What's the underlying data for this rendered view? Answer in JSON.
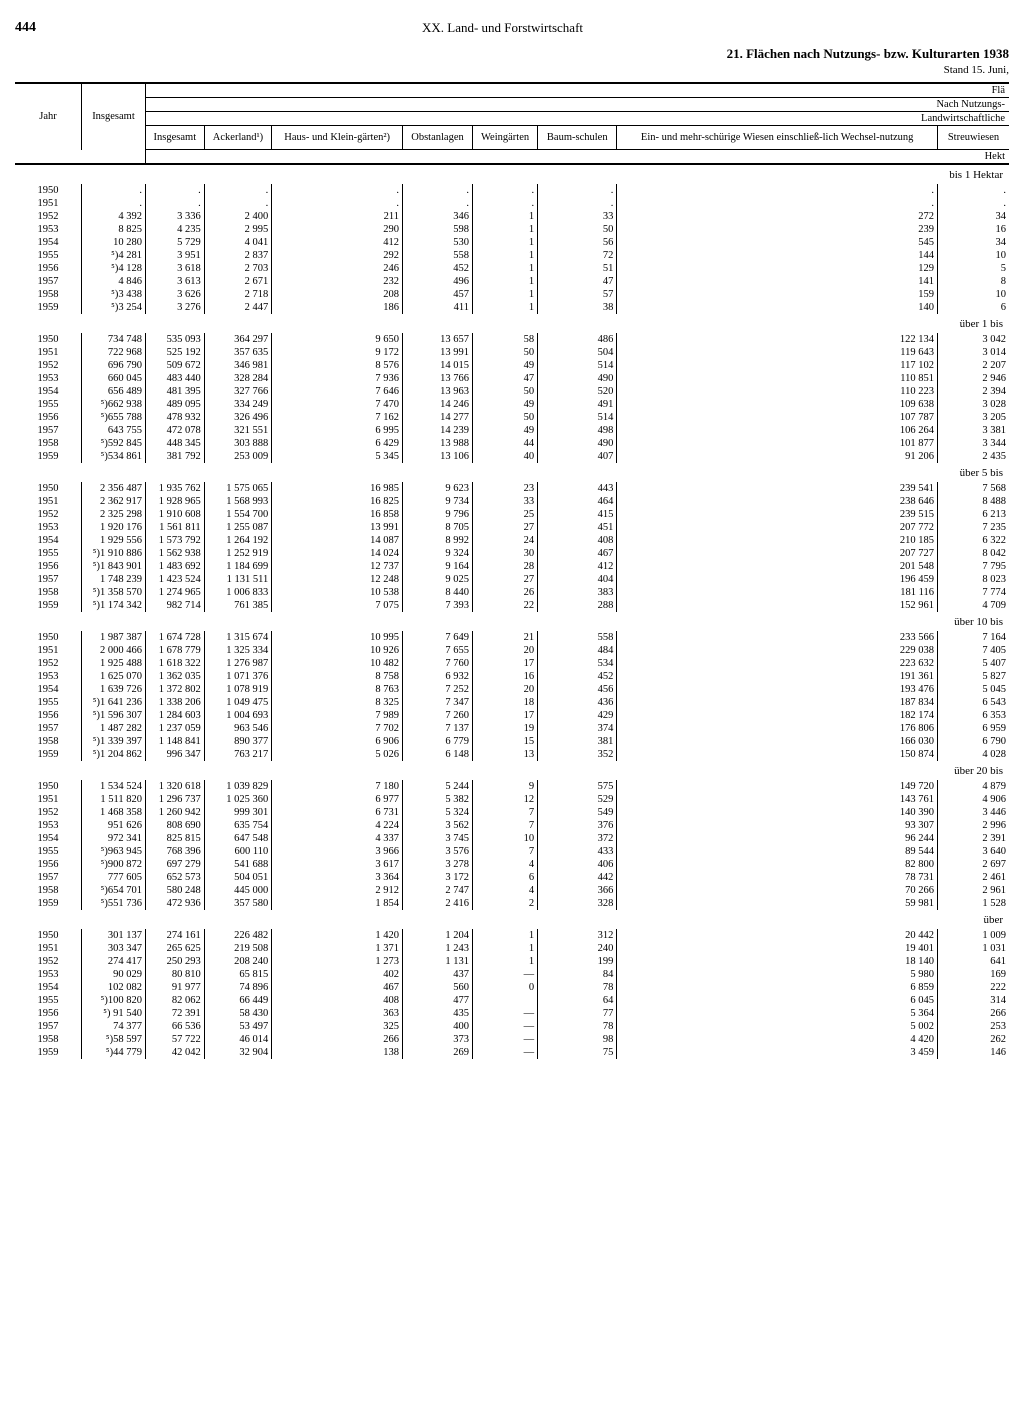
{
  "page_number": "444",
  "section": "XX. Land- und Forstwirtschaft",
  "title": "21. Flächen nach Nutzungs- bzw. Kulturarten 1938",
  "subtitle": "Stand 15. Juni,",
  "header": {
    "fla": "Flä",
    "nach_nutzungs": "Nach Nutzungs-",
    "landwirt": "Landwirtschaftliche",
    "jahr": "Jahr",
    "insgesamt": "Insgesamt",
    "insgesamt2": "Insgesamt",
    "ackerland": "Ackerland¹)",
    "haus": "Haus- und Klein-gärten²)",
    "obst": "Obstanlagen",
    "wein": "Weingärten",
    "baum": "Baum-schulen",
    "wiesen": "Ein- und mehr-schürige Wiesen einschließ-lich Wechsel-nutzung",
    "streu": "Streuwiesen",
    "hekt": "Hekt"
  },
  "groups": [
    {
      "label": "bis 1 Hektar",
      "rows": [
        [
          "1950",
          ".",
          ".",
          ".",
          ".",
          ".",
          ".",
          ".",
          ".",
          "."
        ],
        [
          "1951",
          ".",
          ".",
          ".",
          ".",
          ".",
          ".",
          ".",
          ".",
          "."
        ],
        [
          "1952",
          "4 392",
          "3 336",
          "2 400",
          "211",
          "346",
          "1",
          "33",
          "272",
          "34"
        ],
        [
          "1953",
          "8 825",
          "4 235",
          "2 995",
          "290",
          "598",
          "1",
          "50",
          "239",
          "16"
        ],
        [
          "1954",
          "10 280",
          "5 729",
          "4 041",
          "412",
          "530",
          "1",
          "56",
          "545",
          "34"
        ],
        [
          "1955",
          "⁵)4 281",
          "3 951",
          "2 837",
          "292",
          "558",
          "1",
          "72",
          "144",
          "10"
        ],
        [
          "1956",
          "⁵)4 128",
          "3 618",
          "2 703",
          "246",
          "452",
          "1",
          "51",
          "129",
          "5"
        ],
        [
          "1957",
          "4 846",
          "3 613",
          "2 671",
          "232",
          "496",
          "1",
          "47",
          "141",
          "8"
        ],
        [
          "1958",
          "⁵)3 438",
          "3 626",
          "2 718",
          "208",
          "457",
          "1",
          "57",
          "159",
          "10"
        ],
        [
          "1959",
          "⁵)3 254",
          "3 276",
          "2 447",
          "186",
          "411",
          "1",
          "38",
          "140",
          "6"
        ]
      ]
    },
    {
      "label": "über 1 bis",
      "rows": [
        [
          "1950",
          "734 748",
          "535 093",
          "364 297",
          "9 650",
          "13 657",
          "58",
          "486",
          "122 134",
          "3 042"
        ],
        [
          "1951",
          "722 968",
          "525 192",
          "357 635",
          "9 172",
          "13 991",
          "50",
          "504",
          "119 643",
          "3 014"
        ],
        [
          "1952",
          "696 790",
          "509 672",
          "346 981",
          "8 576",
          "14 015",
          "49",
          "514",
          "117 102",
          "2 207"
        ],
        [
          "1953",
          "660 045",
          "483 440",
          "328 284",
          "7 936",
          "13 766",
          "47",
          "490",
          "110 851",
          "2 946"
        ],
        [
          "1954",
          "656 489",
          "481 395",
          "327 766",
          "7 646",
          "13 963",
          "50",
          "520",
          "110 223",
          "2 394"
        ],
        [
          "1955",
          "⁵)662 938",
          "489 095",
          "334 249",
          "7 470",
          "14 246",
          "49",
          "491",
          "109 638",
          "3 028"
        ],
        [
          "1956",
          "⁵)655 788",
          "478 932",
          "326 496",
          "7 162",
          "14 277",
          "50",
          "514",
          "107 787",
          "3 205"
        ],
        [
          "1957",
          "643 755",
          "472 078",
          "321 551",
          "6 995",
          "14 239",
          "49",
          "498",
          "106 264",
          "3 381"
        ],
        [
          "1958",
          "⁵)592 845",
          "448 345",
          "303 888",
          "6 429",
          "13 988",
          "44",
          "490",
          "101 877",
          "3 344"
        ],
        [
          "1959",
          "⁵)534 861",
          "381 792",
          "253 009",
          "5 345",
          "13 106",
          "40",
          "407",
          "91 206",
          "2 435"
        ]
      ]
    },
    {
      "label": "über 5 bis",
      "rows": [
        [
          "1950",
          "2 356 487",
          "1 935 762",
          "1 575 065",
          "16 985",
          "9 623",
          "23",
          "443",
          "239 541",
          "7 568"
        ],
        [
          "1951",
          "2 362 917",
          "1 928 965",
          "1 568 993",
          "16 825",
          "9 734",
          "33",
          "464",
          "238 646",
          "8 488"
        ],
        [
          "1952",
          "2 325 298",
          "1 910 608",
          "1 554 700",
          "16 858",
          "9 796",
          "25",
          "415",
          "239 515",
          "6 213"
        ],
        [
          "1953",
          "1 920 176",
          "1 561 811",
          "1 255 087",
          "13 991",
          "8 705",
          "27",
          "451",
          "207 772",
          "7 235"
        ],
        [
          "1954",
          "1 929 556",
          "1 573 792",
          "1 264 192",
          "14 087",
          "8 992",
          "24",
          "408",
          "210 185",
          "6 322"
        ],
        [
          "1955",
          "⁵)1 910 886",
          "1 562 938",
          "1 252 919",
          "14 024",
          "9 324",
          "30",
          "467",
          "207 727",
          "8 042"
        ],
        [
          "1956",
          "⁵)1 843 901",
          "1 483 692",
          "1 184 699",
          "12 737",
          "9 164",
          "28",
          "412",
          "201 548",
          "7 795"
        ],
        [
          "1957",
          "1 748 239",
          "1 423 524",
          "1 131 511",
          "12 248",
          "9 025",
          "27",
          "404",
          "196 459",
          "8 023"
        ],
        [
          "1958",
          "⁵)1 358 570",
          "1 274 965",
          "1 006 833",
          "10 538",
          "8 440",
          "26",
          "383",
          "181 116",
          "7 774"
        ],
        [
          "1959",
          "⁵)1 174 342",
          "982 714",
          "761 385",
          "7 075",
          "7 393",
          "22",
          "288",
          "152 961",
          "4 709"
        ]
      ]
    },
    {
      "label": "über 10 bis",
      "rows": [
        [
          "1950",
          "1 987 387",
          "1 674 728",
          "1 315 674",
          "10 995",
          "7 649",
          "21",
          "558",
          "233 566",
          "7 164"
        ],
        [
          "1951",
          "2 000 466",
          "1 678 779",
          "1 325 334",
          "10 926",
          "7 655",
          "20",
          "484",
          "229 038",
          "7 405"
        ],
        [
          "1952",
          "1 925 488",
          "1 618 322",
          "1 276 987",
          "10 482",
          "7 760",
          "17",
          "534",
          "223 632",
          "5 407"
        ],
        [
          "1953",
          "1 625 070",
          "1 362 035",
          "1 071 376",
          "8 758",
          "6 932",
          "16",
          "452",
          "191 361",
          "5 827"
        ],
        [
          "1954",
          "1 639 726",
          "1 372 802",
          "1 078 919",
          "8 763",
          "7 252",
          "20",
          "456",
          "193 476",
          "5 045"
        ],
        [
          "1955",
          "⁵)1 641 236",
          "1 338 206",
          "1 049 475",
          "8 325",
          "7 347",
          "18",
          "436",
          "187 834",
          "6 543"
        ],
        [
          "1956",
          "⁵)1 596 307",
          "1 284 603",
          "1 004 693",
          "7 989",
          "7 260",
          "17",
          "429",
          "182 174",
          "6 353"
        ],
        [
          "1957",
          "1 487 282",
          "1 237 059",
          "963 546",
          "7 702",
          "7 137",
          "19",
          "374",
          "176 806",
          "6 959"
        ],
        [
          "1958",
          "⁵)1 339 397",
          "1 148 841",
          "890 377",
          "6 906",
          "6 779",
          "15",
          "381",
          "166 030",
          "6 790"
        ],
        [
          "1959",
          "⁵)1 204 862",
          "996 347",
          "763 217",
          "5 026",
          "6 148",
          "13",
          "352",
          "150 874",
          "4 028"
        ]
      ]
    },
    {
      "label": "über 20 bis",
      "rows": [
        [
          "1950",
          "1 534 524",
          "1 320 618",
          "1 039 829",
          "7 180",
          "5 244",
          "9",
          "575",
          "149 720",
          "4 879"
        ],
        [
          "1951",
          "1 511 820",
          "1 296 737",
          "1 025 360",
          "6 977",
          "5 382",
          "12",
          "529",
          "143 761",
          "4 906"
        ],
        [
          "1952",
          "1 468 358",
          "1 260 942",
          "999 301",
          "6 731",
          "5 324",
          "7",
          "549",
          "140 390",
          "3 446"
        ],
        [
          "1953",
          "951 626",
          "808 690",
          "635 754",
          "4 224",
          "3 562",
          "7",
          "376",
          "93 307",
          "2 996"
        ],
        [
          "1954",
          "972 341",
          "825 815",
          "647 548",
          "4 337",
          "3 745",
          "10",
          "372",
          "96 244",
          "2 391"
        ],
        [
          "1955",
          "⁵)963 945",
          "768 396",
          "600 110",
          "3 966",
          "3 576",
          "7",
          "433",
          "89 544",
          "3 640"
        ],
        [
          "1956",
          "⁵)900 872",
          "697 279",
          "541 688",
          "3 617",
          "3 278",
          "4",
          "406",
          "82 800",
          "2 697"
        ],
        [
          "1957",
          "777 605",
          "652 573",
          "504 051",
          "3 364",
          "3 172",
          "6",
          "442",
          "78 731",
          "2 461"
        ],
        [
          "1958",
          "⁵)654 701",
          "580 248",
          "445 000",
          "2 912",
          "2 747",
          "4",
          "366",
          "70 266",
          "2 961"
        ],
        [
          "1959",
          "⁵)551 736",
          "472 936",
          "357 580",
          "1 854",
          "2 416",
          "2",
          "328",
          "59 981",
          "1 528"
        ]
      ]
    },
    {
      "label": "über",
      "rows": [
        [
          "1950",
          "301 137",
          "274 161",
          "226 482",
          "1 420",
          "1 204",
          "1",
          "312",
          "20 442",
          "1 009"
        ],
        [
          "1951",
          "303 347",
          "265 625",
          "219 508",
          "1 371",
          "1 243",
          "1",
          "240",
          "19 401",
          "1 031"
        ],
        [
          "1952",
          "274 417",
          "250 293",
          "208 240",
          "1 273",
          "1 131",
          "1",
          "199",
          "18 140",
          "641"
        ],
        [
          "1953",
          "90 029",
          "80 810",
          "65 815",
          "402",
          "437",
          "—",
          "84",
          "5 980",
          "169"
        ],
        [
          "1954",
          "102 082",
          "91 977",
          "74 896",
          "467",
          "560",
          "0",
          "78",
          "6 859",
          "222"
        ],
        [
          "1955",
          "⁵)100 820",
          "82 062",
          "66 449",
          "408",
          "477",
          "",
          "64",
          "6 045",
          "314"
        ],
        [
          "1956",
          "⁵) 91 540",
          "72 391",
          "58 430",
          "363",
          "435",
          "—",
          "77",
          "5 364",
          "266"
        ],
        [
          "1957",
          "74 377",
          "66 536",
          "53 497",
          "325",
          "400",
          "—",
          "78",
          "5 002",
          "253"
        ],
        [
          "1958",
          "⁵)58 597",
          "57 722",
          "46 014",
          "266",
          "373",
          "—",
          "98",
          "4 420",
          "262"
        ],
        [
          "1959",
          "⁵)44 779",
          "42 042",
          "32 904",
          "138",
          "269",
          "—",
          "75",
          "3 459",
          "146"
        ]
      ]
    }
  ]
}
